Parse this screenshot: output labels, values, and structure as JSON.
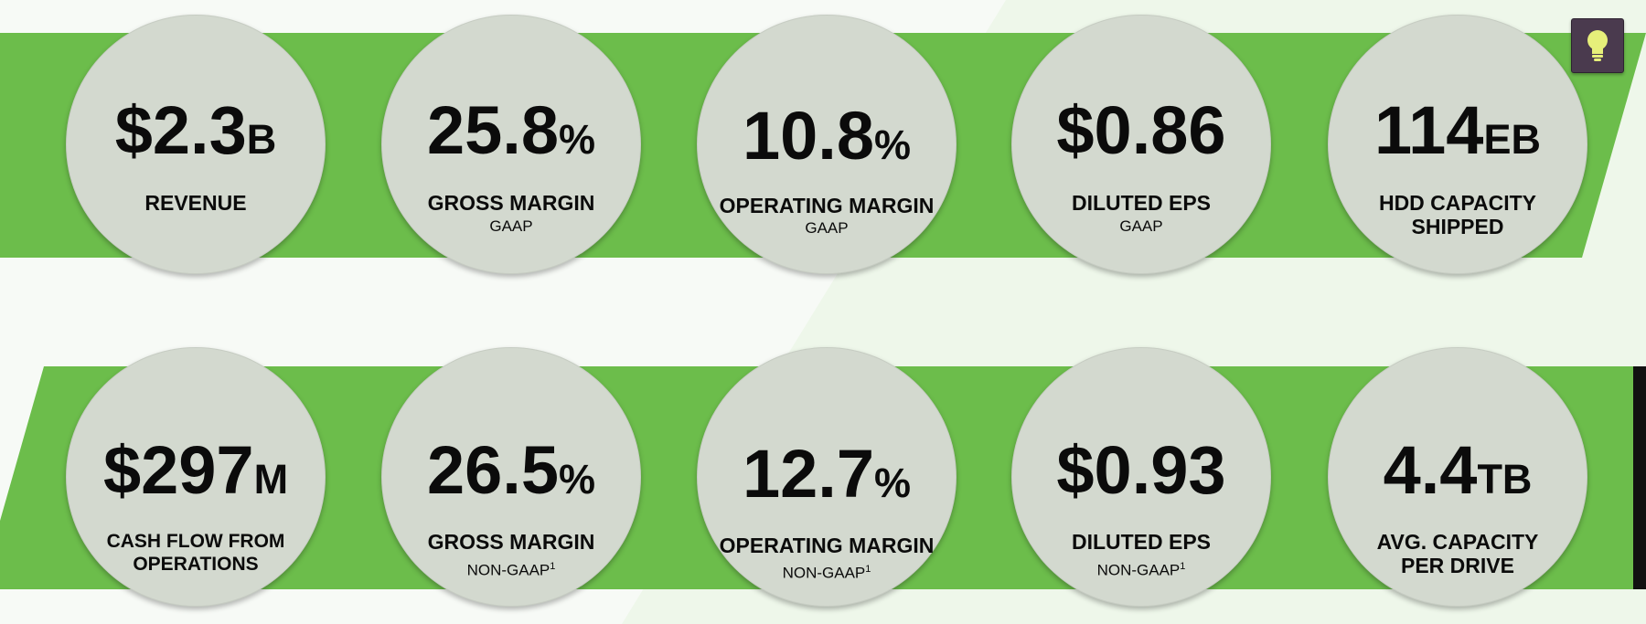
{
  "colors": {
    "band": "#6cbd4b",
    "circle": "#d3d9cf",
    "text": "#0b0b0b",
    "bulb": "#e6ef7a",
    "button": "#4a3a4e"
  },
  "icons": {
    "idea": "lightbulb-icon"
  },
  "metrics_gaap": [
    {
      "value": "$2.3",
      "unit": "B",
      "label": "REVENUE",
      "sub": ""
    },
    {
      "value": "25.8",
      "unit": "%",
      "label": "GROSS MARGIN",
      "sub": "GAAP"
    },
    {
      "value": "10.8",
      "unit": "%",
      "label": "OPERATING MARGIN",
      "sub": "GAAP"
    },
    {
      "value": "$0.86",
      "unit": "",
      "label": "DILUTED EPS",
      "sub": "GAAP"
    },
    {
      "value": "114",
      "unit": "EB",
      "label": "HDD CAPACITY SHIPPED",
      "sub": ""
    }
  ],
  "metrics_non_gaap": [
    {
      "value": "$297",
      "unit": "M",
      "label": "CASH FLOW FROM OPERATIONS",
      "sub": ""
    },
    {
      "value": "26.5",
      "unit": "%",
      "label": "GROSS MARGIN",
      "sub": "NON-GAAP",
      "footnote": "1"
    },
    {
      "value": "12.7",
      "unit": "%",
      "label": "OPERATING MARGIN",
      "sub": "NON-GAAP",
      "footnote": "1"
    },
    {
      "value": "$0.93",
      "unit": "",
      "label": "DILUTED EPS",
      "sub": "NON-GAAP",
      "footnote": "1"
    },
    {
      "value": "4.4",
      "unit": "TB",
      "label": "AVG. CAPACITY PER DRIVE",
      "sub": ""
    }
  ]
}
